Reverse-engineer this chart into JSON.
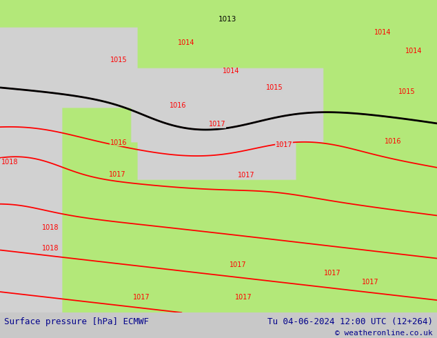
{
  "title_left": "Surface pressure [hPa] ECMWF",
  "title_right": "Tu 04-06-2024 12:00 UTC (12+264)",
  "copyright": "© weatheronline.co.uk",
  "land_color": "#b3e87a",
  "sea_color": "#d8d8d8",
  "bg_left_color": "#d0d0d0",
  "footer_bg": "#ffffff",
  "footer_text_color": "#00008b",
  "isobar_color_red": "#ff0000",
  "isobar_color_black": "#000000",
  "coast_color": "#888888",
  "fig_width": 6.34,
  "fig_height": 4.9,
  "dpi": 100,
  "red_labels": [
    [
      172,
      88,
      "1015"
    ],
    [
      270,
      63,
      "1014"
    ],
    [
      335,
      105,
      "1014"
    ],
    [
      398,
      129,
      "1015"
    ],
    [
      258,
      155,
      "1016"
    ],
    [
      315,
      183,
      "1017"
    ],
    [
      412,
      213,
      "1017"
    ],
    [
      357,
      258,
      "1017"
    ],
    [
      172,
      210,
      "1016"
    ],
    [
      570,
      208,
      "1016"
    ],
    [
      170,
      257,
      "1017"
    ],
    [
      555,
      48,
      "1014"
    ],
    [
      600,
      75,
      "1014"
    ],
    [
      590,
      135,
      "1015"
    ],
    [
      14,
      238,
      "1018"
    ],
    [
      73,
      335,
      "1018"
    ],
    [
      73,
      365,
      "1018"
    ],
    [
      205,
      437,
      "1017"
    ],
    [
      353,
      437,
      "1017"
    ],
    [
      482,
      402,
      "1017"
    ],
    [
      537,
      415,
      "1017"
    ],
    [
      345,
      390,
      "1017"
    ]
  ],
  "black_label": [
    330,
    28,
    "1013"
  ]
}
